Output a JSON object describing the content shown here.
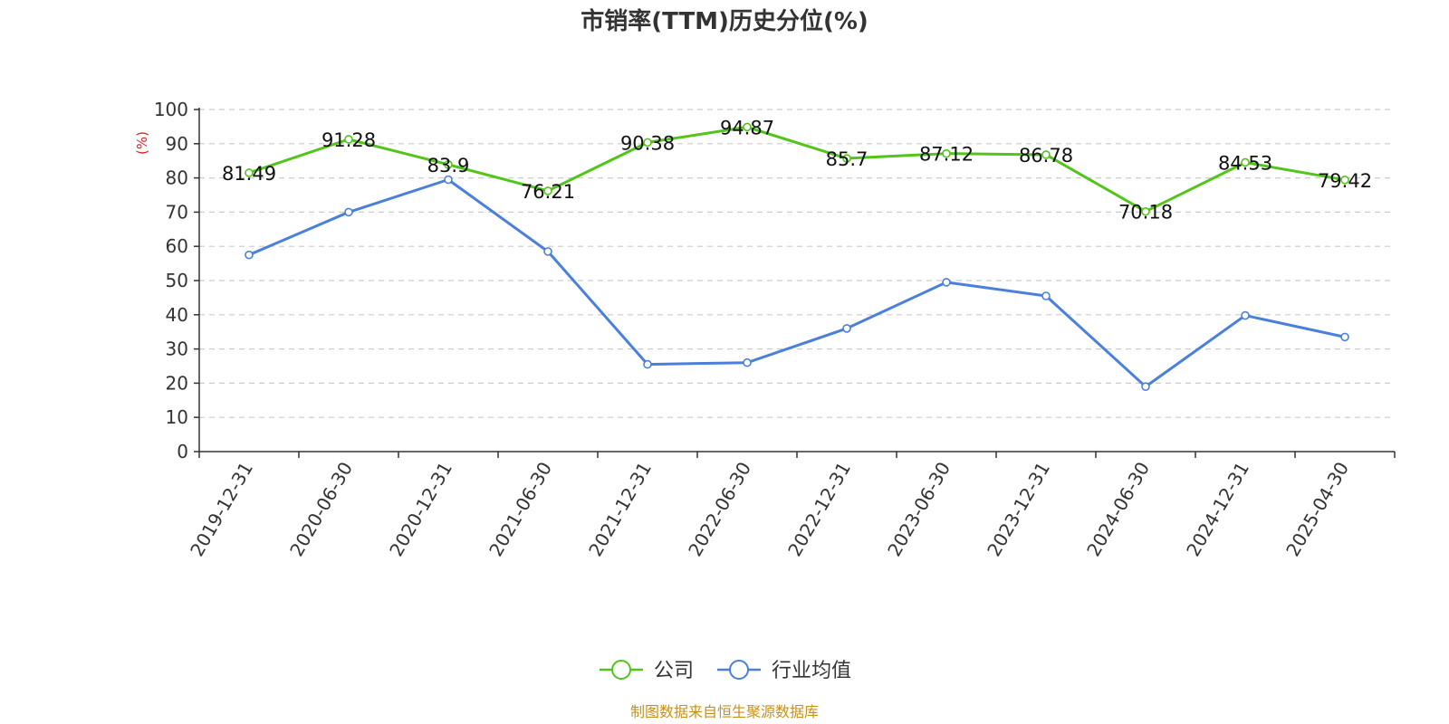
{
  "chart_data": {
    "type": "line",
    "title": "市销率(TTM)历史分位(%)",
    "ylabel": "(%)",
    "ylim": [
      0,
      100
    ],
    "ytick_step": 10,
    "grid": true,
    "legend_position": "bottom-center",
    "categories": [
      "2019-12-31",
      "2020-06-30",
      "2020-12-31",
      "2021-06-30",
      "2021-12-31",
      "2022-06-30",
      "2022-12-31",
      "2023-06-30",
      "2023-12-31",
      "2024-06-30",
      "2024-12-31",
      "2025-04-30"
    ],
    "series": [
      {
        "name": "公司",
        "color": "#52c41a",
        "show_labels": true,
        "values": [
          81.49,
          91.28,
          83.9,
          76.21,
          90.38,
          94.87,
          85.7,
          87.12,
          86.78,
          70.18,
          84.53,
          79.42
        ]
      },
      {
        "name": "行业均值",
        "color": "#4a7fdc",
        "show_labels": false,
        "values": [
          57.5,
          70.0,
          79.5,
          58.5,
          25.5,
          26.0,
          36.0,
          49.5,
          45.5,
          19.0,
          39.8,
          33.5
        ]
      }
    ],
    "source_note": "制图数据来自恒生聚源数据库"
  }
}
